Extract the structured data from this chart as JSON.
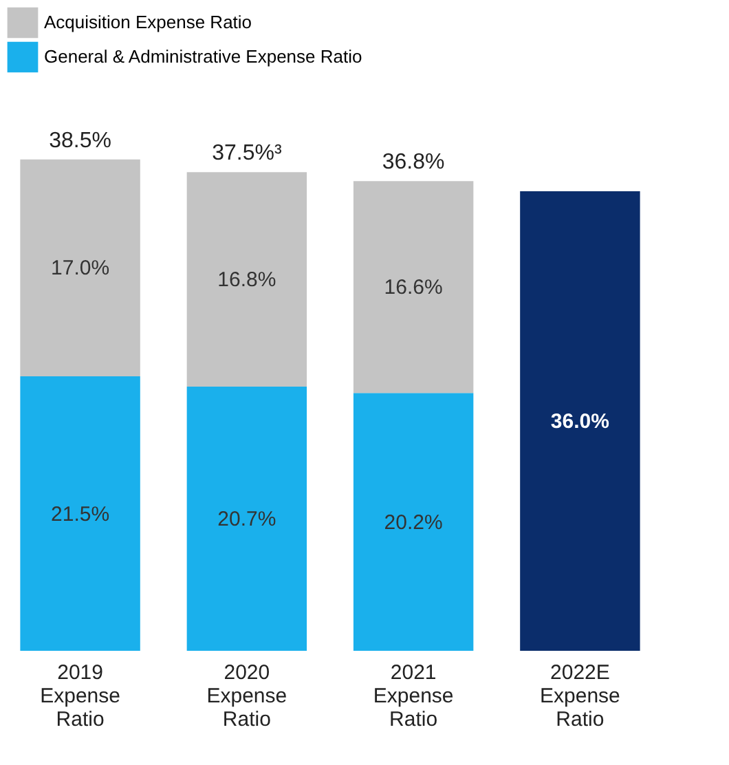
{
  "chart_data": {
    "type": "bar",
    "stacked": true,
    "legend": "top",
    "categories": [
      "2019 Expense Ratio",
      "2020 Expense Ratio",
      "2021 Expense Ratio",
      "2022E Expense Ratio"
    ],
    "series": [
      {
        "name": "General & Administrative Expense Ratio",
        "color": "#1ab0ec",
        "values": [
          21.5,
          20.7,
          20.2,
          null
        ],
        "value_labels": [
          "21.5%",
          "20.7%",
          "20.2%",
          null
        ]
      },
      {
        "name": "Acquisition Expense Ratio",
        "color": "#c4c4c4",
        "values": [
          17.0,
          16.8,
          16.6,
          null
        ],
        "value_labels": [
          "17.0%",
          "16.8%",
          "16.6%",
          null
        ]
      },
      {
        "color": "#0b2d6b",
        "values": [
          null,
          null,
          null,
          36.0
        ],
        "value_labels": [
          null,
          null,
          null,
          "36.0%"
        ]
      }
    ],
    "totals": [
      "38.5%",
      "37.5%³",
      "36.8%",
      null
    ]
  }
}
